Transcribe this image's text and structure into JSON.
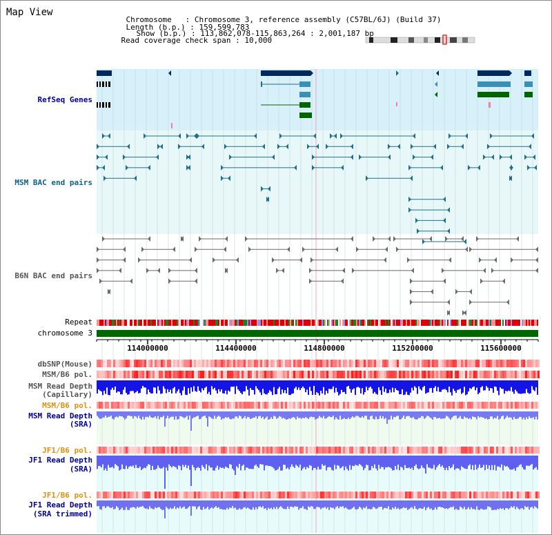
{
  "app": {
    "title": "Map View"
  },
  "info": {
    "chromosome_key": "Chromosome",
    "chromosome_value": "Chromosome 3, reference assembly (C57BL/6J) (Build 37)",
    "length_key": "Length (b.p.)",
    "length_value": "159,599,783",
    "show_key": "Show (b.p.)",
    "show_value": "113,862,078-115,863,264 : 2,001,187 bp",
    "span_key": "Read coverage check span",
    "span_value": "10,000"
  },
  "tracks": {
    "refseq": "RefSeq Genes",
    "msm_bac": "MSM BAC end pairs",
    "b6n_bac": "B6N BAC end pairs",
    "repeat": "Repeat",
    "chromosome": "chromosome 3",
    "dbsnp": "dbSNP(Mouse)",
    "msm_b6_pol_1": "MSM/B6 pol.",
    "msm_depth_cap_1": "MSM Read Depth",
    "msm_depth_cap_2": "(Capillary)",
    "msm_b6_pol_2": "MSM/B6 pol.",
    "msm_depth_sra_1": "MSM Read Depth",
    "msm_depth_sra_2": "(SRA)",
    "jf1_b6_pol_1": "JF1/B6 pol.",
    "jf1_depth_sra_1": "JF1 Read Depth",
    "jf1_depth_sra_2": "(SRA)",
    "jf1_b6_pol_2": "JF1/B6 pol.",
    "jf1_depth_trim_1": "JF1 Read Depth",
    "jf1_depth_trim_2": "(SRA trimmed)"
  },
  "axis": {
    "ticks": [
      "114000000",
      "114400000",
      "114800000",
      "115200000",
      "115600000"
    ]
  },
  "colors": {
    "refseq_bg": "#d6f0fa",
    "msm_bac_bg": "#e6f8f8",
    "gene_dark": "#002a5c",
    "gene_mid": "#3a8fb7",
    "gene_green": "#006400",
    "bac_line": "#1f6e8c",
    "b6n_line": "#666666",
    "chromosome_bar": "#006600",
    "depth_blue": "#1414e6",
    "depth_light": "#7a7af0",
    "snp_red": "#e83030"
  }
}
